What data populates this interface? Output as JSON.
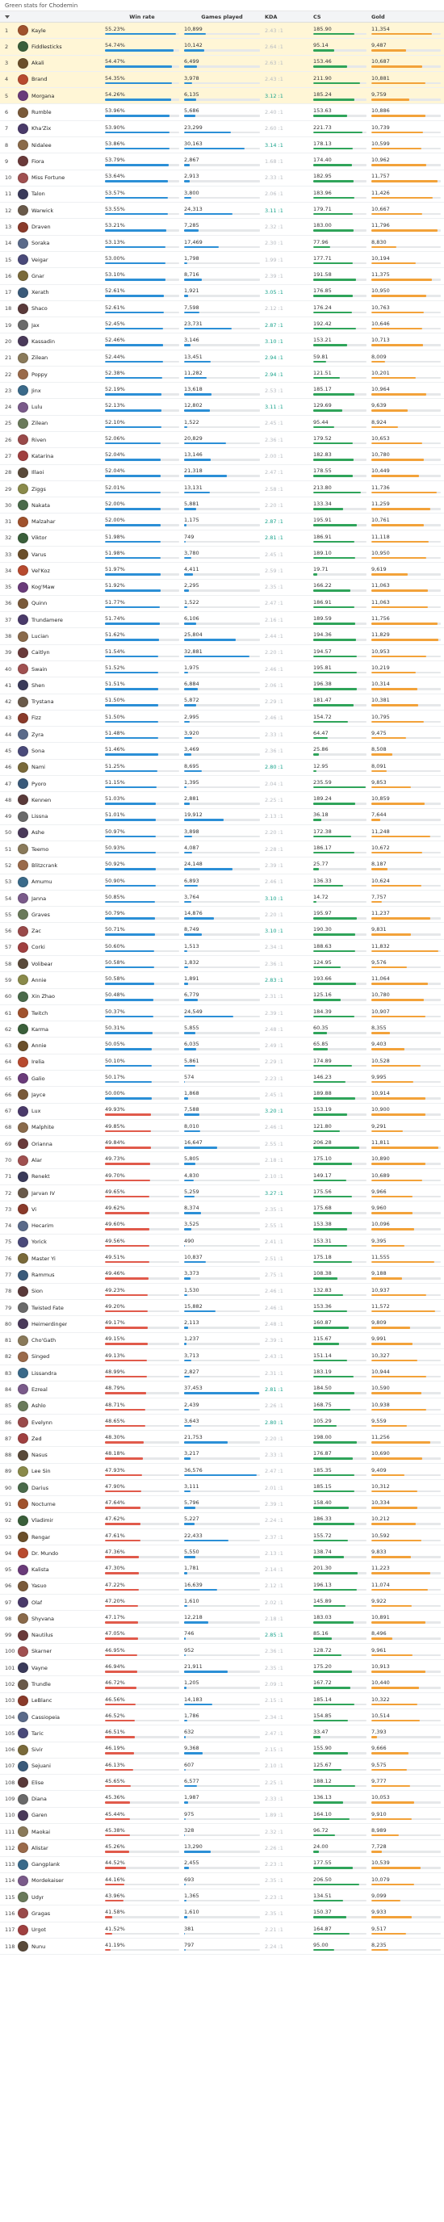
{
  "page_title": "Green stats for Chodemin",
  "headers": {
    "rank": "",
    "champion": "",
    "winrate": "Win rate",
    "games": "Games played",
    "kda": "KDA",
    "cs": "CS",
    "gold": "Gold"
  },
  "colors": {
    "wr_high": "#2b8fd6",
    "wr_low": "#e05a4b",
    "cs": "#2fa45a",
    "gold": "#f2a23a",
    "top_row": "#fff6d6"
  },
  "rows": [
    [
      "Kayle",
      "55.23%",
      "10,899",
      "2.43 :1",
      "185.90",
      "11,354"
    ],
    [
      "Fiddlesticks",
      "54.74%",
      "10,142",
      "2.64 :1",
      "95.14",
      "9,487"
    ],
    [
      "Akali",
      "54.47%",
      "6,499",
      "2.63 :1",
      "153.46",
      "10,687"
    ],
    [
      "Brand",
      "54.35%",
      "3,978",
      "2.43 :1",
      "211.90",
      "10,881"
    ],
    [
      "Morgana",
      "54.26%",
      "6,135",
      "3.12 :1",
      "185.24",
      "9,759"
    ],
    [
      "Rumble",
      "53.96%",
      "5,686",
      "2.40 :1",
      "153.63",
      "10,886"
    ],
    [
      "Kha'Zix",
      "53.90%",
      "23,299",
      "2.60 :1",
      "221.73",
      "10,739"
    ],
    [
      "Nidalee",
      "53.86%",
      "30,163",
      "3.14 :1",
      "178.13",
      "10,599"
    ],
    [
      "Fiora",
      "53.79%",
      "2,867",
      "1.68 :1",
      "174.40",
      "10,962"
    ],
    [
      "Miss Fortune",
      "53.64%",
      "2,913",
      "2.33 :1",
      "182.95",
      "11,757"
    ],
    [
      "Talon",
      "53.57%",
      "3,800",
      "2.06 :1",
      "183.96",
      "11,426"
    ],
    [
      "Warwick",
      "53.55%",
      "24,313",
      "3.11 :1",
      "179.71",
      "10,667"
    ],
    [
      "Draven",
      "53.21%",
      "7,285",
      "2.32 :1",
      "183.00",
      "11,796"
    ],
    [
      "Soraka",
      "53.13%",
      "17,469",
      "2.30 :1",
      "77.96",
      "8,830"
    ],
    [
      "Veigar",
      "53.00%",
      "1,798",
      "1.99 :1",
      "177.71",
      "10,194"
    ],
    [
      "Gnar",
      "53.10%",
      "8,716",
      "2.39 :1",
      "191.58",
      "11,375"
    ],
    [
      "Xerath",
      "52.61%",
      "1,921",
      "3.05 :1",
      "176.85",
      "10,950"
    ],
    [
      "Shaco",
      "52.61%",
      "7,598",
      "2.12 :1",
      "176.24",
      "10,763"
    ],
    [
      "Jax",
      "52.45%",
      "23,731",
      "2.87 :1",
      "192.42",
      "10,646"
    ],
    [
      "Kassadin",
      "52.46%",
      "3,146",
      "3.10 :1",
      "153.21",
      "10,713"
    ],
    [
      "Zilean",
      "52.44%",
      "13,451",
      "2.94 :1",
      "59.81",
      "8,009"
    ],
    [
      "Poppy",
      "52.38%",
      "11,282",
      "2.94 :1",
      "121.51",
      "10,201"
    ],
    [
      "Jinx",
      "52.19%",
      "13,618",
      "2.53 :1",
      "185.17",
      "10,964"
    ],
    [
      "Lulu",
      "52.13%",
      "12,802",
      "3.11 :1",
      "129.69",
      "9,639"
    ],
    [
      "Zilean",
      "52.10%",
      "1,522",
      "2.45 :1",
      "95.44",
      "8,924"
    ],
    [
      "Riven",
      "52.06%",
      "20,829",
      "2.36 :1",
      "179.52",
      "10,653"
    ],
    [
      "Katarina",
      "52.04%",
      "13,146",
      "2.00 :1",
      "182.83",
      "10,780"
    ],
    [
      "Illaoi",
      "52.04%",
      "21,318",
      "2.47 :1",
      "178.55",
      "10,449"
    ],
    [
      "Ziggs",
      "52.01%",
      "13,131",
      "2.58 :1",
      "213.80",
      "11,736"
    ],
    [
      "Nakata",
      "52.00%",
      "5,881",
      "2.20 :1",
      "133.34",
      "11,259"
    ],
    [
      "Malzahar",
      "52.00%",
      "1,175",
      "2.87 :1",
      "195.91",
      "10,761"
    ],
    [
      "Viktor",
      "51.98%",
      "749",
      "2.81 :1",
      "186.91",
      "11,118"
    ],
    [
      "Varus",
      "51.98%",
      "3,780",
      "2.45 :1",
      "189.10",
      "10,950"
    ],
    [
      "Vel'Koz",
      "51.97%",
      "4,411",
      "2.59 :1",
      "19.71",
      "9,619"
    ],
    [
      "Kog'Maw",
      "51.92%",
      "2,295",
      "2.35 :1",
      "166.22",
      "11,063"
    ],
    [
      "Quinn",
      "51.77%",
      "1,522",
      "2.47 :1",
      "186.91",
      "11,063"
    ],
    [
      "Trundamere",
      "51.74%",
      "6,106",
      "2.16 :1",
      "189.59",
      "11,756"
    ],
    [
      "Lucian",
      "51.62%",
      "25,804",
      "2.44 :1",
      "194.36",
      "11,829"
    ],
    [
      "Caitlyn",
      "51.54%",
      "32,881",
      "2.20 :1",
      "194.57",
      "10,953"
    ],
    [
      "Swain",
      "51.52%",
      "1,975",
      "2.46 :1",
      "195.81",
      "10,219"
    ],
    [
      "Shen",
      "51.51%",
      "6,884",
      "2.06 :1",
      "196.38",
      "10,314"
    ],
    [
      "Trystana",
      "51.50%",
      "5,872",
      "2.29 :1",
      "181.47",
      "10,381"
    ],
    [
      "Fizz",
      "51.50%",
      "2,995",
      "2.46 :1",
      "154.72",
      "10,795"
    ],
    [
      "Zyra",
      "51.48%",
      "3,920",
      "2.33 :1",
      "64.47",
      "9,475"
    ],
    [
      "Sona",
      "51.46%",
      "3,469",
      "2.36 :1",
      "25.86",
      "8,508"
    ],
    [
      "Nami",
      "51.25%",
      "8,695",
      "2.80 :1",
      "12.95",
      "8,091"
    ],
    [
      "Pyoro",
      "51.15%",
      "1,395",
      "2.04 :1",
      "235.59",
      "9,853"
    ],
    [
      "Kennen",
      "51.03%",
      "2,881",
      "2.25 :1",
      "189.24",
      "10,859"
    ],
    [
      "Lissna",
      "51.01%",
      "19,912",
      "2.13 :1",
      "36.18",
      "7,644"
    ],
    [
      "Ashe",
      "50.97%",
      "3,898",
      "2.20 :1",
      "172.38",
      "11,248"
    ],
    [
      "Teemo",
      "50.93%",
      "4,087",
      "2.28 :1",
      "186.17",
      "10,672"
    ],
    [
      "Blitzcrank",
      "50.92%",
      "24,148",
      "2.39 :1",
      "25.77",
      "8,187"
    ],
    [
      "Amumu",
      "50.90%",
      "6,893",
      "2.46 :1",
      "136.33",
      "10,624"
    ],
    [
      "Janna",
      "50.85%",
      "3,764",
      "3.10 :1",
      "14.72",
      "7,757"
    ],
    [
      "Graves",
      "50.79%",
      "14,876",
      "2.20 :1",
      "195.97",
      "11,237"
    ],
    [
      "Zac",
      "50.71%",
      "8,749",
      "3.10 :1",
      "190.30",
      "9,831"
    ],
    [
      "Corki",
      "50.60%",
      "1,513",
      "2.34 :1",
      "188.63",
      "11,832"
    ],
    [
      "Volibear",
      "50.58%",
      "1,832",
      "2.36 :1",
      "124.95",
      "9,576"
    ],
    [
      "Annie",
      "50.58%",
      "1,891",
      "2.83 :1",
      "193.66",
      "11,064"
    ],
    [
      "Xin Zhao",
      "50.48%",
      "6,779",
      "2.31 :1",
      "125.16",
      "10,780"
    ],
    [
      "Twitch",
      "50.37%",
      "24,549",
      "2.39 :1",
      "184.39",
      "10,907"
    ],
    [
      "Karma",
      "50.31%",
      "5,855",
      "2.48 :1",
      "60.35",
      "8,355"
    ],
    [
      "Annie",
      "50.05%",
      "6,035",
      "2.49 :1",
      "65.85",
      "9,403"
    ],
    [
      "Irelia",
      "50.10%",
      "5,861",
      "2.29 :1",
      "174.89",
      "10,528"
    ],
    [
      "Galio",
      "50.17%",
      "574",
      "2.23 :1",
      "146.23",
      "9,995"
    ],
    [
      "Jayce",
      "50.00%",
      "1,868",
      "2.45 :1",
      "189.88",
      "10,914"
    ],
    [
      "Lux",
      "49.93%",
      "7,588",
      "3.20 :1",
      "153.19",
      "10,900"
    ],
    [
      "Malphite",
      "49.85%",
      "8,010",
      "2.46 :1",
      "121.80",
      "9,291"
    ],
    [
      "Orianna",
      "49.84%",
      "16,647",
      "2.55 :1",
      "206.28",
      "11,811"
    ],
    [
      "Alar",
      "49.73%",
      "5,805",
      "2.18 :1",
      "175.10",
      "10,890"
    ],
    [
      "Renekt",
      "49.70%",
      "4,830",
      "2.10 :1",
      "149.17",
      "10,689"
    ],
    [
      "Jarvan IV",
      "49.65%",
      "5,259",
      "3.27 :1",
      "175.56",
      "9,966"
    ],
    [
      "Vi",
      "49.62%",
      "8,374",
      "2.35 :1",
      "175.68",
      "9,960"
    ],
    [
      "Hecarim",
      "49.60%",
      "3,525",
      "2.55 :1",
      "153.38",
      "10,096"
    ],
    [
      "Yorick",
      "49.56%",
      "490",
      "2.41 :1",
      "153.31",
      "9,395"
    ],
    [
      "Master Yi",
      "49.51%",
      "10,837",
      "2.51 :1",
      "175.18",
      "11,555"
    ],
    [
      "Rammus",
      "49.46%",
      "3,373",
      "2.75 :1",
      "108.38",
      "9,188"
    ],
    [
      "Sion",
      "49.23%",
      "1,530",
      "2.46 :1",
      "132.83",
      "10,937"
    ],
    [
      "Twisted Fate",
      "49.20%",
      "15,882",
      "2.46 :1",
      "153.36",
      "11,572"
    ],
    [
      "Heimerdinger",
      "49.17%",
      "2,113",
      "2.48 :1",
      "160.87",
      "9,809"
    ],
    [
      "Cho'Gath",
      "49.15%",
      "1,237",
      "2.39 :1",
      "115.67",
      "9,991"
    ],
    [
      "Singed",
      "49.13%",
      "3,713",
      "2.43 :1",
      "151.14",
      "10,327"
    ],
    [
      "Lissandra",
      "48.99%",
      "2,827",
      "2.31 :1",
      "183.19",
      "10,944"
    ],
    [
      "Ezreal",
      "48.79%",
      "37,453",
      "2.81 :1",
      "184.50",
      "10,590"
    ],
    [
      "Ashlo",
      "48.71%",
      "2,439",
      "2.26 :1",
      "168.75",
      "10,938"
    ],
    [
      "Evelynn",
      "48.65%",
      "3,643",
      "2.80 :1",
      "105.29",
      "9,559"
    ],
    [
      "Zed",
      "48.30%",
      "21,753",
      "2.20 :1",
      "198.00",
      "11,256"
    ],
    [
      "Nasus",
      "48.18%",
      "3,217",
      "2.33 :1",
      "176.87",
      "10,690"
    ],
    [
      "Lee Sin",
      "47.93%",
      "36,576",
      "2.47 :1",
      "185.35",
      "9,409"
    ],
    [
      "Darius",
      "47.90%",
      "3,111",
      "2.01 :1",
      "185.15",
      "10,312"
    ],
    [
      "Nocturne",
      "47.64%",
      "5,796",
      "2.39 :1",
      "158.40",
      "10,334"
    ],
    [
      "Vladimir",
      "47.62%",
      "5,227",
      "2.24 :1",
      "186.33",
      "10,212"
    ],
    [
      "Rengar",
      "47.61%",
      "22,433",
      "2.37 :1",
      "155.72",
      "10,592"
    ],
    [
      "Dr. Mundo",
      "47.36%",
      "5,550",
      "2.13 :1",
      "138.74",
      "9,833"
    ],
    [
      "Kalista",
      "47.30%",
      "1,781",
      "2.14 :1",
      "201.30",
      "11,223"
    ],
    [
      "Yasuo",
      "47.22%",
      "16,639",
      "2.12 :1",
      "196.13",
      "11,074"
    ],
    [
      "Olaf",
      "47.20%",
      "1,610",
      "2.02 :1",
      "145.89",
      "9,922"
    ],
    [
      "Shyvana",
      "47.17%",
      "12,218",
      "2.18 :1",
      "183.03",
      "10,891"
    ],
    [
      "Nautilus",
      "47.05%",
      "746",
      "2.85 :1",
      "85.16",
      "8,496"
    ],
    [
      "Skarner",
      "46.95%",
      "952",
      "2.36 :1",
      "128.72",
      "9,961"
    ],
    [
      "Vayne",
      "46.94%",
      "21,911",
      "2.35 :1",
      "175.20",
      "10,913"
    ],
    [
      "Trundle",
      "46.72%",
      "1,205",
      "2.09 :1",
      "167.72",
      "10,440"
    ],
    [
      "LeBlanc",
      "46.56%",
      "14,183",
      "2.15 :1",
      "185.14",
      "10,322"
    ],
    [
      "Cassiopeia",
      "46.52%",
      "1,786",
      "2.34 :1",
      "154.85",
      "10,514"
    ],
    [
      "Taric",
      "46.51%",
      "632",
      "2.47 :1",
      "33.47",
      "7,393"
    ],
    [
      "Sivir",
      "46.19%",
      "9,368",
      "2.15 :1",
      "155.90",
      "9,666"
    ],
    [
      "Sejuani",
      "46.13%",
      "607",
      "2.10 :1",
      "125.67",
      "9,575"
    ],
    [
      "Elise",
      "45.65%",
      "6,577",
      "2.25 :1",
      "188.12",
      "9,777"
    ],
    [
      "Diana",
      "45.36%",
      "1,987",
      "2.33 :1",
      "136.13",
      "10,053"
    ],
    [
      "Garen",
      "45.44%",
      "975",
      "1.89 :1",
      "164.10",
      "9,910"
    ],
    [
      "Maokai",
      "45.38%",
      "328",
      "2.32 :1",
      "96.72",
      "8,989"
    ],
    [
      "Alistar",
      "45.26%",
      "13,290",
      "2.26 :1",
      "24.00",
      "7,728"
    ],
    [
      "Gangplank",
      "44.52%",
      "2,455",
      "2.23 :1",
      "177.55",
      "10,539"
    ],
    [
      "Mordekaiser",
      "44.16%",
      "693",
      "2.35 :1",
      "206.50",
      "10,079"
    ],
    [
      "Udyr",
      "43.96%",
      "1,365",
      "2.23 :1",
      "134.51",
      "9,099"
    ],
    [
      "Gragas",
      "41.58%",
      "1,610",
      "2.35 :1",
      "150.37",
      "9,933"
    ],
    [
      "Urgot",
      "41.52%",
      "381",
      "2.21 :1",
      "164.87",
      "9,517"
    ],
    [
      "Nunu",
      "41.19%",
      "797",
      "2.24 :1",
      "95.00",
      "8,235"
    ]
  ],
  "avatar_colors": [
    "#a0522d",
    "#3a5f3a",
    "#6b4f2a",
    "#b84a2f",
    "#6a3b7a",
    "#7a5a3a",
    "#4a3a6a",
    "#8a6a4a",
    "#6a3a3a",
    "#a05050",
    "#3a3a5a",
    "#6a5a4a",
    "#8a3a2a",
    "#5a6a8a",
    "#4a4a7a",
    "#7a6a3a",
    "#3a5a7a",
    "#5a3a3a",
    "#6a6a6a",
    "#4a3a5a",
    "#8a7a5a",
    "#9a6a4a",
    "#3a6a8a",
    "#7a5a8a",
    "#6a7a5a",
    "#9a4a4a",
    "#a04040",
    "#5a4a3a",
    "#8a8a4a",
    "#4a6a4a"
  ]
}
